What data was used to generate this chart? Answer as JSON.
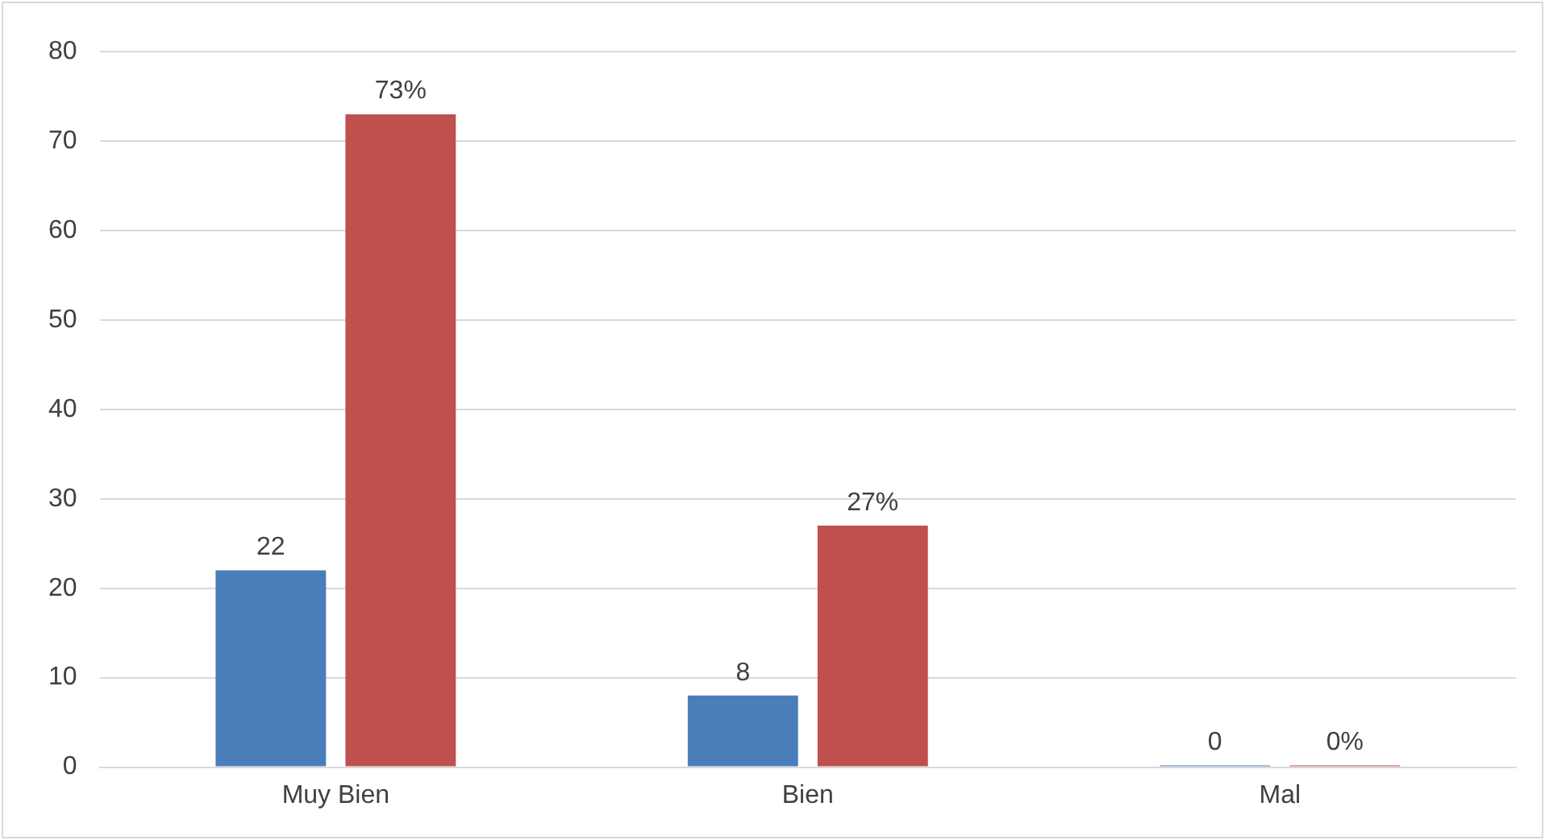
{
  "chart_data": {
    "type": "bar",
    "categories": [
      "Muy Bien",
      "Bien",
      "Mal"
    ],
    "series": [
      {
        "color": "#4a7ebb",
        "values": [
          22,
          8,
          0
        ],
        "value_labels": [
          "22",
          "8",
          "0"
        ]
      },
      {
        "color": "#c0504d",
        "values": [
          73,
          27,
          0
        ],
        "value_labels": [
          "73%",
          "27%",
          "0%"
        ]
      }
    ],
    "ylim": [
      0,
      80
    ],
    "yticks": [
      0,
      10,
      20,
      30,
      40,
      50,
      60,
      70,
      80
    ],
    "grid": "y",
    "legend": false
  }
}
